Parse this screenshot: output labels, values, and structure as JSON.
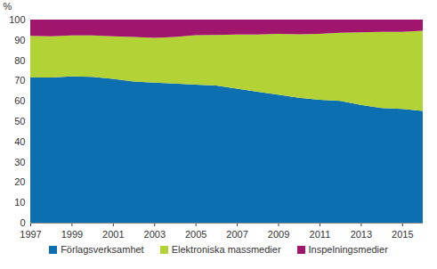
{
  "chart_data": {
    "type": "area",
    "stacked": true,
    "y_label": "%",
    "x": [
      1997,
      1998,
      1999,
      2000,
      2001,
      2002,
      2003,
      2004,
      2005,
      2006,
      2007,
      2008,
      2009,
      2010,
      2011,
      2012,
      2013,
      2014,
      2015,
      2016
    ],
    "series": [
      {
        "name": "Förlagsverksamhet",
        "color": "#0c6fb0",
        "values": [
          71.5,
          71.5,
          72,
          71.8,
          70.8,
          69.5,
          69,
          68.5,
          68,
          67.5,
          66,
          64.5,
          63,
          61.5,
          60.5,
          60,
          58,
          56.5,
          56,
          55
        ]
      },
      {
        "name": "Elektroniska massmedier",
        "color": "#b2d235",
        "values": [
          20.5,
          20.3,
          20.2,
          20.4,
          21,
          22,
          22,
          23,
          24.3,
          24.9,
          26.6,
          28.2,
          30,
          31.3,
          32.5,
          33.5,
          35.7,
          37.5,
          38,
          39.5
        ]
      },
      {
        "name": "Inspelningsmedier",
        "color": "#a0166d",
        "values": [
          8,
          8.2,
          7.8,
          7.8,
          8.2,
          8.5,
          9,
          8.5,
          7.7,
          7.6,
          7.4,
          7.3,
          7,
          7.2,
          7,
          6.5,
          6.3,
          6,
          6,
          5.5
        ]
      }
    ],
    "xlim": [
      1997,
      2016
    ],
    "xticks": [
      1997,
      1999,
      2001,
      2003,
      2005,
      2007,
      2009,
      2011,
      2013,
      2015
    ],
    "ylim": [
      0,
      100
    ],
    "yticks": [
      0,
      10,
      20,
      30,
      40,
      50,
      60,
      70,
      80,
      90,
      100
    ],
    "grid": true,
    "legend": "bottom"
  }
}
